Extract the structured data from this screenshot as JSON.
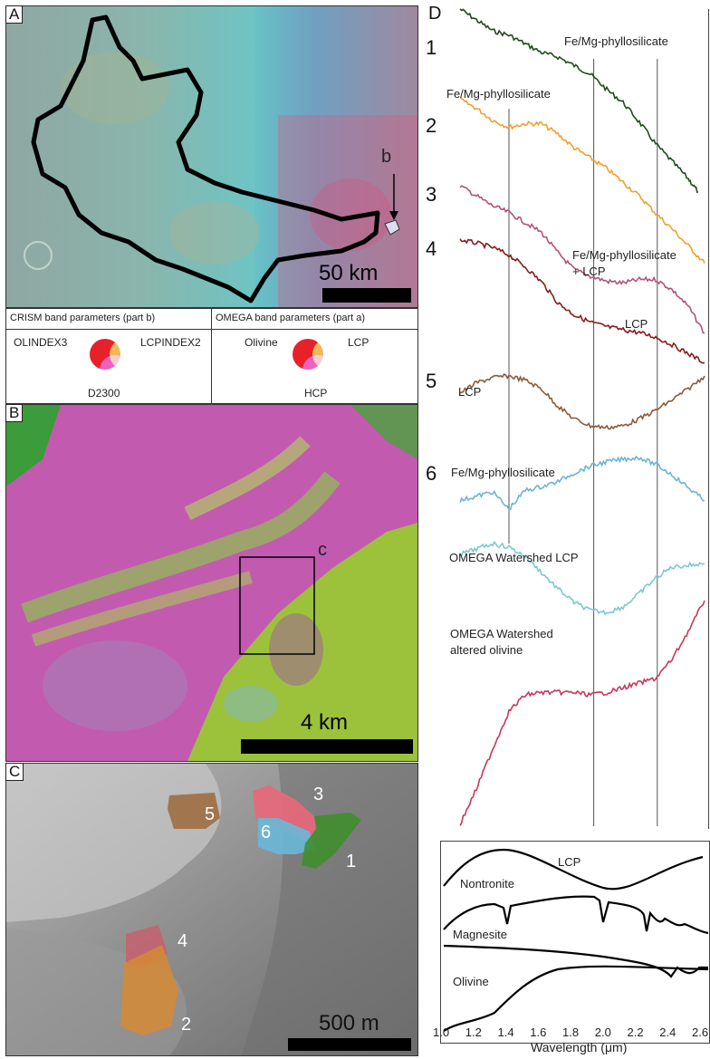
{
  "panels": {
    "a": {
      "letter": "A",
      "marker": "b",
      "scale": "50 km"
    },
    "b": {
      "letter": "B",
      "marker": "c",
      "scale": "4 km"
    },
    "c": {
      "letter": "C",
      "scale": "500 m",
      "numbers": [
        "1",
        "2",
        "3",
        "4",
        "5",
        "6"
      ]
    },
    "d": {
      "letter": "D",
      "numbers": [
        "1",
        "2",
        "3",
        "4",
        "5",
        "6"
      ]
    }
  },
  "legend": {
    "crism_title": "CRISM band parameters (part b)",
    "omega_title": "OMEGA band parameters (part a)",
    "crism_red": "OLINDEX3",
    "crism_green": "LCPINDEX2",
    "crism_blue": "D2300",
    "omega_red": "Olivine",
    "omega_green": "LCP",
    "omega_blue": "HCP"
  },
  "spectra_labels": {
    "s1": "Fe/Mg-phyllosilicate",
    "s2": "Fe/Mg-phyllosilicate",
    "s3_line1": "Fe/Mg-phyllosilicate",
    "s3_line2": "+ LCP",
    "s4": "LCP",
    "s5": "LCP",
    "s6": "Fe/Mg-phyllosilicate",
    "s7": "OMEGA Watershed LCP",
    "s8_line1": "OMEGA Watershed",
    "s8_line2": "altered olivine"
  },
  "library_labels": {
    "lcp": "LCP",
    "nontronite": "Nontronite",
    "magnesite": "Magnesite",
    "olivine": "Olivine"
  },
  "chart_data": {
    "type": "line",
    "xlabel": "Wavelength (μm)",
    "xlim": [
      1.0,
      2.6
    ],
    "x_ticks": [
      "1.0",
      "1.2",
      "1.4",
      "1.6",
      "1.8",
      "2.0",
      "2.2",
      "2.4",
      "2.6"
    ],
    "reference_lines_um": [
      1.4,
      1.92,
      2.31
    ],
    "series": [
      {
        "name": "Fe/Mg-phyllosilicate",
        "color": "#1f4d1a",
        "x": [
          1.1,
          1.2,
          1.3,
          1.4,
          1.5,
          1.6,
          1.7,
          1.8,
          1.9,
          2.0,
          2.1,
          2.2,
          2.3,
          2.4,
          2.5,
          2.56
        ],
        "y": [
          1.0,
          0.95,
          0.9,
          0.88,
          0.84,
          0.8,
          0.78,
          0.74,
          0.7,
          0.63,
          0.57,
          0.48,
          0.38,
          0.3,
          0.22,
          0.16
        ]
      },
      {
        "name": "Fe/Mg-phyllosilicate",
        "color": "#f0a030",
        "x": [
          1.1,
          1.2,
          1.3,
          1.4,
          1.5,
          1.6,
          1.7,
          1.8,
          1.9,
          2.0,
          2.1,
          2.2,
          2.3,
          2.4,
          2.5,
          2.6
        ],
        "y": [
          1.0,
          0.95,
          0.88,
          0.84,
          0.86,
          0.86,
          0.8,
          0.72,
          0.66,
          0.6,
          0.52,
          0.44,
          0.34,
          0.25,
          0.15,
          0.05
        ]
      },
      {
        "name": "Fe/Mg-phyllosilicate + LCP",
        "color": "#b0547c",
        "x": [
          1.1,
          1.2,
          1.3,
          1.4,
          1.5,
          1.6,
          1.7,
          1.8,
          1.9,
          2.0,
          2.1,
          2.2,
          2.3,
          2.4,
          2.5,
          2.6
        ],
        "y": [
          1.0,
          0.94,
          0.88,
          0.84,
          0.78,
          0.72,
          0.6,
          0.5,
          0.46,
          0.43,
          0.42,
          0.44,
          0.44,
          0.38,
          0.28,
          0.12
        ]
      },
      {
        "name": "LCP",
        "color": "#8b1a1a",
        "x": [
          1.1,
          1.2,
          1.3,
          1.4,
          1.5,
          1.6,
          1.7,
          1.8,
          1.9,
          2.0,
          2.1,
          2.2,
          2.3,
          2.4,
          2.5,
          2.6
        ],
        "y": [
          1.0,
          0.98,
          0.95,
          0.9,
          0.82,
          0.72,
          0.58,
          0.5,
          0.45,
          0.42,
          0.4,
          0.38,
          0.35,
          0.3,
          0.24,
          0.18
        ]
      },
      {
        "name": "LCP",
        "color": "#8b5a3c",
        "x": [
          1.1,
          1.2,
          1.3,
          1.4,
          1.5,
          1.6,
          1.7,
          1.8,
          1.9,
          2.0,
          2.1,
          2.2,
          2.3,
          2.4,
          2.5,
          2.6
        ],
        "y": [
          0.8,
          0.92,
          0.98,
          1.0,
          0.95,
          0.85,
          0.65,
          0.5,
          0.42,
          0.4,
          0.42,
          0.5,
          0.6,
          0.72,
          0.85,
          1.0
        ]
      },
      {
        "name": "Fe/Mg-phyllosilicate",
        "color": "#6bb3d6",
        "x": [
          1.1,
          1.2,
          1.3,
          1.4,
          1.5,
          1.6,
          1.7,
          1.8,
          1.9,
          2.0,
          2.1,
          2.2,
          2.3,
          2.4,
          2.5,
          2.6
        ],
        "y": [
          0.5,
          0.55,
          0.6,
          0.4,
          0.62,
          0.66,
          0.72,
          0.82,
          0.9,
          0.95,
          0.98,
          1.0,
          0.92,
          0.8,
          0.65,
          0.5
        ]
      },
      {
        "name": "OMEGA Watershed LCP",
        "color": "#7cc9cf",
        "x": [
          1.1,
          1.2,
          1.3,
          1.4,
          1.5,
          1.6,
          1.7,
          1.8,
          1.9,
          2.0,
          2.1,
          2.2,
          2.3,
          2.4,
          2.5,
          2.6
        ],
        "y": [
          0.88,
          0.94,
          1.0,
          0.96,
          0.86,
          0.68,
          0.5,
          0.35,
          0.26,
          0.24,
          0.3,
          0.45,
          0.62,
          0.74,
          0.76,
          0.78
        ]
      },
      {
        "name": "OMEGA Watershed altered olivine",
        "color": "#c8385a",
        "x": [
          1.1,
          1.2,
          1.3,
          1.4,
          1.5,
          1.6,
          1.7,
          1.8,
          1.9,
          2.0,
          2.1,
          2.2,
          2.3,
          2.4,
          2.5,
          2.6
        ],
        "y": [
          0.0,
          0.15,
          0.32,
          0.48,
          0.55,
          0.56,
          0.56,
          0.56,
          0.55,
          0.56,
          0.58,
          0.6,
          0.62,
          0.7,
          0.82,
          0.95
        ]
      }
    ]
  }
}
